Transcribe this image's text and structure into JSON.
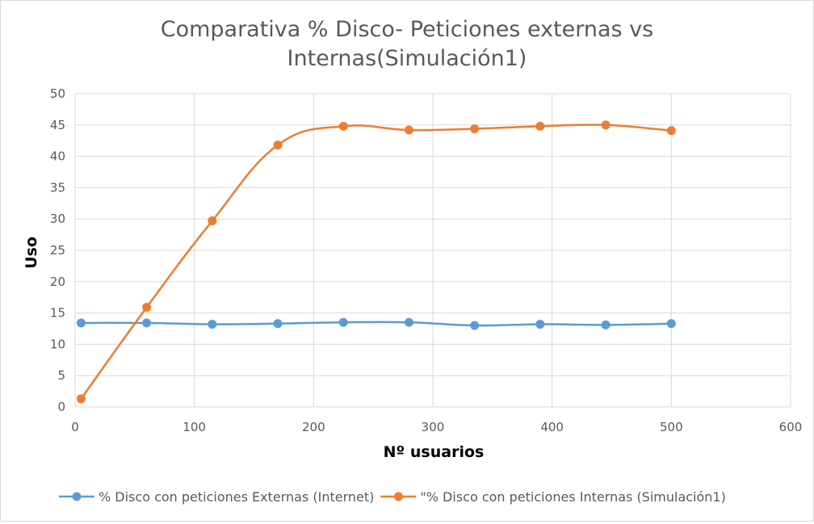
{
  "chart_data": {
    "type": "line",
    "title_line1": "Comparativa % Disco- Peticiones externas vs",
    "title_line2": "Internas(Simulación1)",
    "xlabel": "Nº usuarios",
    "ylabel": "Uso",
    "xlim": [
      0,
      600
    ],
    "ylim": [
      0,
      50
    ],
    "x_ticks": [
      0,
      100,
      200,
      300,
      400,
      500,
      600
    ],
    "y_ticks": [
      0,
      5,
      10,
      15,
      20,
      25,
      30,
      35,
      40,
      45,
      50
    ],
    "grid": true,
    "smooth": true,
    "legend_position": "bottom",
    "series": [
      {
        "name": "% Disco con peticiones Externas (Internet)",
        "color": "#5b9bd5",
        "x": [
          5,
          60,
          115,
          170,
          225,
          280,
          335,
          390,
          445,
          500
        ],
        "y": [
          13.4,
          13.4,
          13.2,
          13.3,
          13.5,
          13.5,
          13.0,
          13.2,
          13.1,
          13.3
        ]
      },
      {
        "name": "\"% Disco con peticiones Internas (Simulación1)",
        "color": "#ed7d31",
        "x": [
          5,
          60,
          115,
          170,
          225,
          280,
          335,
          390,
          445,
          500
        ],
        "y": [
          1.3,
          15.9,
          29.7,
          41.8,
          44.8,
          44.2,
          44.4,
          44.8,
          45.0,
          44.1
        ]
      }
    ]
  }
}
